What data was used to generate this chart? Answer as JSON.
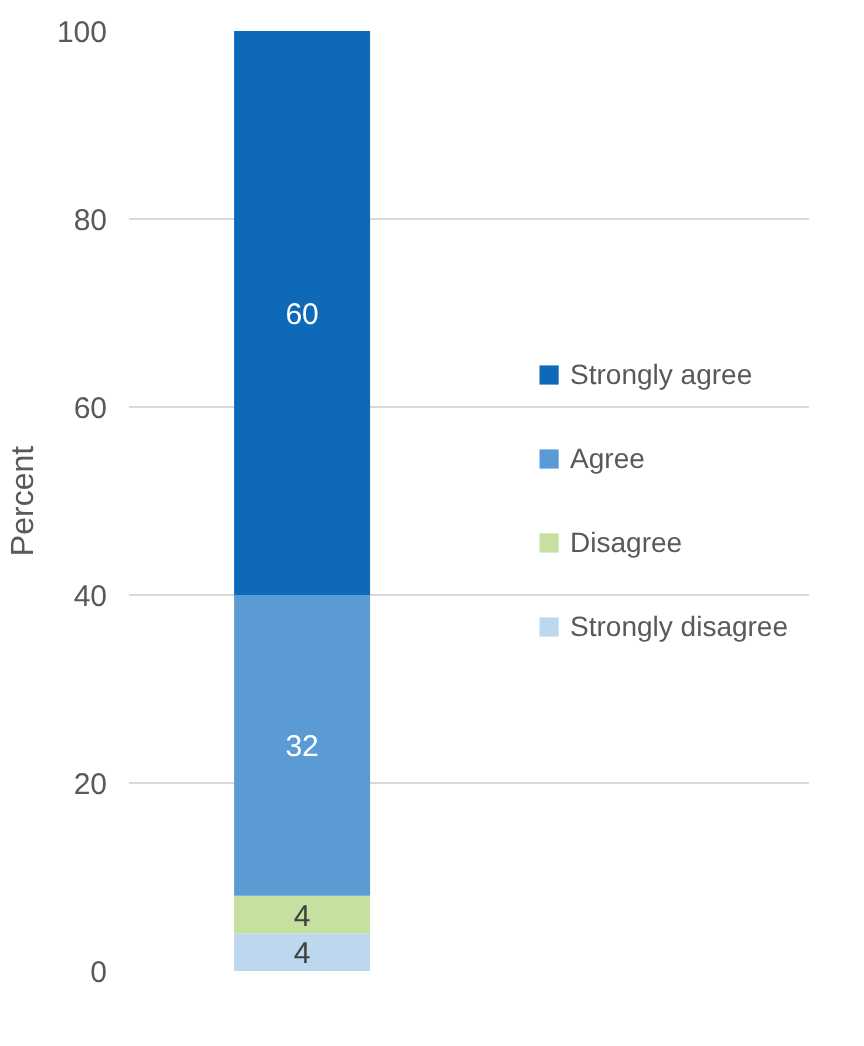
{
  "chart_data": {
    "type": "bar",
    "stacked": true,
    "ylabel": "Percent",
    "categories": [
      null
    ],
    "series": [
      {
        "name": "Strongly disagree",
        "color": "#bdd7ee",
        "values": [
          4
        ]
      },
      {
        "name": "Disagree",
        "color": "#c5e0a0",
        "values": [
          4
        ]
      },
      {
        "name": "Agree",
        "color": "#5b9bd5",
        "values": [
          32
        ]
      },
      {
        "name": "Strongly agree",
        "color": "#0e6ab8",
        "values": [
          60
        ]
      }
    ],
    "ylim": [
      0,
      100
    ],
    "yticks": [
      0,
      20,
      40,
      60,
      80,
      100
    ],
    "grid": "y",
    "legend": "right",
    "data_labels": true,
    "tick_labels": "y"
  }
}
